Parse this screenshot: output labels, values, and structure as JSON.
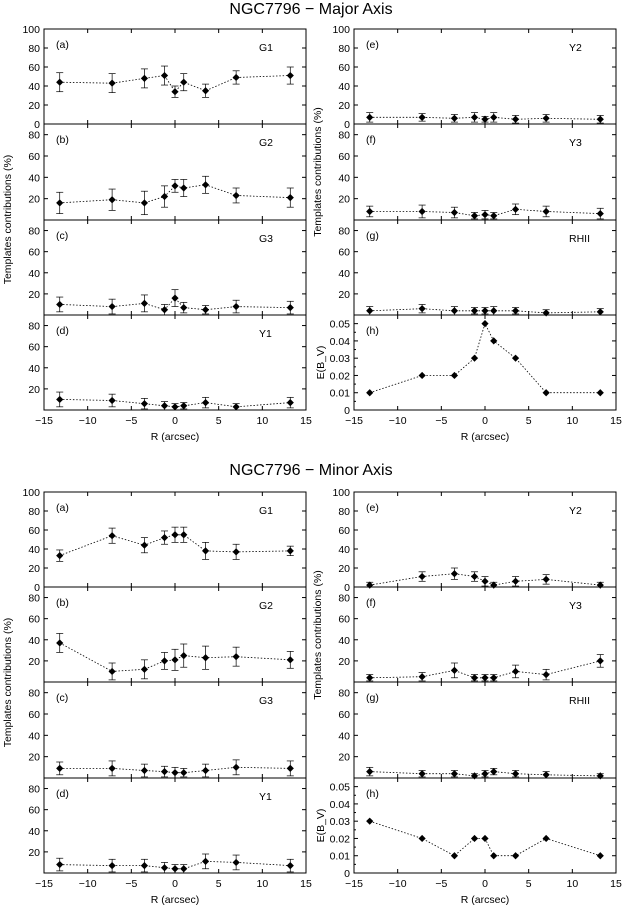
{
  "figure": {
    "xlabel": "R (arcsec)",
    "ylabel_templates": "Templates contributions (%)",
    "x_ticks": [
      "−15",
      "−10",
      "−5",
      "0",
      "5",
      "10",
      "15"
    ],
    "y_ticks_pct_top": [
      "0",
      "20",
      "40",
      "60",
      "80",
      "100"
    ],
    "y_ticks_pct": [
      "0",
      "20",
      "40",
      "60",
      "80"
    ],
    "y_ticks_ebv": [
      "0",
      "0.01",
      "0.02",
      "0.03",
      "0.04",
      "0.05"
    ]
  },
  "chart_data": [
    {
      "title": "NGC7796 − Major Axis",
      "type": "scatter",
      "x": [
        -13.2,
        -7.2,
        -3.5,
        -1.2,
        0,
        1,
        3.5,
        7,
        13.2
      ],
      "xlim": [
        -15,
        15
      ],
      "panels": [
        {
          "letter": "(a)",
          "name": "G1",
          "ylim": [
            0,
            100
          ],
          "values": [
            44,
            43,
            48,
            51,
            34,
            44,
            35,
            49,
            51
          ],
          "err": [
            10,
            10,
            10,
            10,
            6,
            9,
            7,
            7,
            9
          ]
        },
        {
          "letter": "(e)",
          "name": "Y2",
          "ylim": [
            0,
            100
          ],
          "values": [
            7,
            7,
            6,
            7,
            5,
            7,
            5,
            6,
            5
          ],
          "err": [
            5,
            4,
            4,
            5,
            3,
            5,
            4,
            4,
            4
          ]
        },
        {
          "letter": "(b)",
          "name": "G2",
          "ylim": [
            0,
            90
          ],
          "values": [
            16,
            19,
            16,
            22,
            32,
            30,
            33,
            23,
            21
          ],
          "err": [
            10,
            10,
            11,
            10,
            6,
            8,
            8,
            7,
            9
          ]
        },
        {
          "letter": "(f)",
          "name": "Y3",
          "ylim": [
            0,
            90
          ],
          "values": [
            8,
            8,
            7,
            4,
            5,
            4,
            10,
            8,
            6
          ],
          "err": [
            5,
            6,
            5,
            3,
            4,
            3,
            5,
            5,
            5
          ]
        },
        {
          "letter": "(c)",
          "name": "G3",
          "ylim": [
            0,
            90
          ],
          "values": [
            10,
            8,
            11,
            5,
            16,
            7,
            5,
            8,
            7
          ],
          "err": [
            7,
            7,
            8,
            5,
            8,
            5,
            4,
            6,
            6
          ]
        },
        {
          "letter": "(g)",
          "name": "RHII",
          "ylim": [
            0,
            90
          ],
          "values": [
            4,
            6,
            4,
            4,
            4,
            4,
            4,
            2,
            3
          ],
          "err": [
            4,
            4,
            4,
            3,
            3,
            4,
            3,
            3,
            3
          ]
        },
        {
          "letter": "(d)",
          "name": "Y1",
          "ylim": [
            0,
            90
          ],
          "values": [
            10,
            9,
            6,
            4,
            3,
            4,
            7,
            3,
            7
          ],
          "err": [
            7,
            6,
            5,
            4,
            3,
            3,
            5,
            3,
            5
          ]
        },
        {
          "letter": "(h)",
          "name": "",
          "ylabel": "E(B_V)",
          "ylim": [
            0,
            0.055
          ],
          "values": [
            0.01,
            0.02,
            0.02,
            0.03,
            0.05,
            0.04,
            0.03,
            0.01,
            0.01
          ]
        }
      ]
    },
    {
      "title": "NGC7796 −  Minor Axis",
      "type": "scatter",
      "x": [
        -13.2,
        -7.2,
        -3.5,
        -1.2,
        0,
        1,
        3.5,
        7,
        13.2
      ],
      "xlim": [
        -15,
        15
      ],
      "panels": [
        {
          "letter": "(a)",
          "name": "G1",
          "ylim": [
            0,
            100
          ],
          "values": [
            33,
            54,
            44,
            52,
            55,
            55,
            38,
            37,
            38
          ],
          "err": [
            6,
            8,
            8,
            7,
            8,
            8,
            9,
            8,
            5
          ]
        },
        {
          "letter": "(e)",
          "name": "Y2",
          "ylim": [
            0,
            100
          ],
          "values": [
            2,
            11,
            14,
            11,
            6,
            2,
            6,
            8,
            2
          ],
          "err": [
            3,
            5,
            6,
            5,
            5,
            3,
            5,
            5,
            3
          ]
        },
        {
          "letter": "(b)",
          "name": "G2",
          "ylim": [
            0,
            90
          ],
          "values": [
            37,
            10,
            12,
            20,
            21,
            25,
            23,
            24,
            21
          ],
          "err": [
            9,
            8,
            9,
            8,
            10,
            11,
            11,
            9,
            8
          ]
        },
        {
          "letter": "(f)",
          "name": "Y3",
          "ylim": [
            0,
            90
          ],
          "values": [
            4,
            5,
            11,
            4,
            4,
            4,
            10,
            7,
            20
          ],
          "err": [
            3,
            4,
            7,
            3,
            3,
            3,
            6,
            5,
            6
          ]
        },
        {
          "letter": "(c)",
          "name": "G3",
          "ylim": [
            0,
            90
          ],
          "values": [
            9,
            9,
            7,
            6,
            5,
            5,
            7,
            10,
            9
          ],
          "err": [
            6,
            7,
            6,
            5,
            5,
            4,
            6,
            7,
            7
          ]
        },
        {
          "letter": "(g)",
          "name": "RHII",
          "ylim": [
            0,
            90
          ],
          "values": [
            6,
            4,
            4,
            2,
            4,
            6,
            4,
            3,
            2
          ],
          "err": [
            4,
            3,
            3,
            2,
            3,
            3,
            3,
            3,
            2
          ]
        },
        {
          "letter": "(d)",
          "name": "Y1",
          "ylim": [
            0,
            90
          ],
          "values": [
            8,
            7,
            7,
            5,
            4,
            4,
            11,
            10,
            7
          ],
          "err": [
            6,
            6,
            6,
            5,
            4,
            4,
            7,
            7,
            6
          ]
        },
        {
          "letter": "(h)",
          "name": "",
          "ylabel": "E(B_V)",
          "ylim": [
            0,
            0.055
          ],
          "values": [
            0.03,
            0.02,
            0.01,
            0.02,
            0.02,
            0.01,
            0.01,
            0.02,
            0.01
          ]
        }
      ]
    }
  ]
}
